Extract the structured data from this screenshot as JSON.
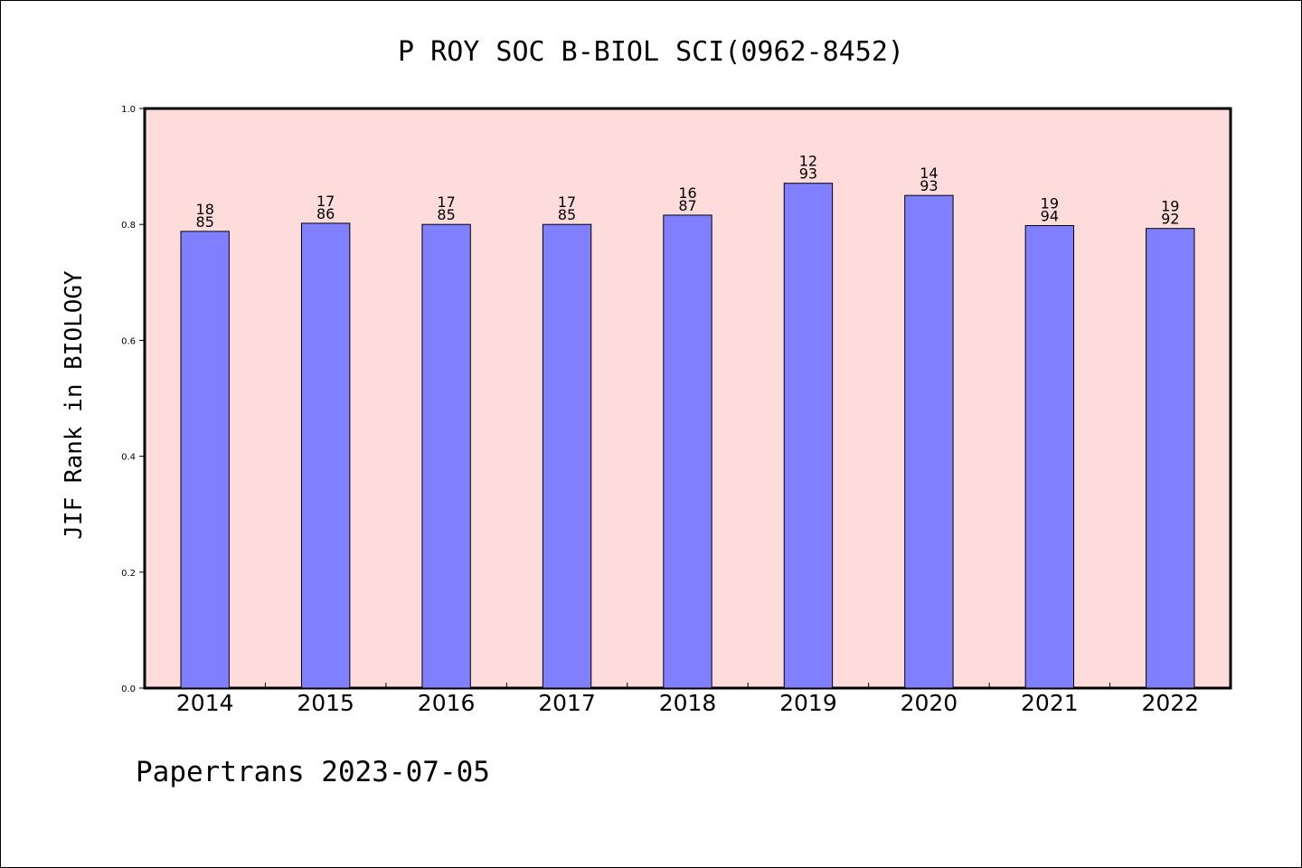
{
  "chart_data": {
    "type": "bar",
    "title": "P ROY SOC B-BIOL SCI(0962-8452)",
    "xlabel": "",
    "ylabel": "JIF Rank in BIOLOGY",
    "ylim": [
      0.0,
      1.0
    ],
    "yticks": [
      0.0,
      0.2,
      0.4,
      0.6,
      0.8,
      1.0
    ],
    "ytick_labels": [
      "0.0",
      "0.2",
      "0.4",
      "0.6",
      "0.8",
      "1.0"
    ],
    "categories": [
      "2014",
      "2015",
      "2016",
      "2017",
      "2018",
      "2019",
      "2020",
      "2021",
      "2022"
    ],
    "values": [
      0.788,
      0.802,
      0.8,
      0.8,
      0.816,
      0.871,
      0.85,
      0.798,
      0.793
    ],
    "rank_labels": [
      {
        "rank": "18",
        "total": "85"
      },
      {
        "rank": "17",
        "total": "86"
      },
      {
        "rank": "17",
        "total": "85"
      },
      {
        "rank": "17",
        "total": "85"
      },
      {
        "rank": "16",
        "total": "87"
      },
      {
        "rank": "12",
        "total": "93"
      },
      {
        "rank": "14",
        "total": "93"
      },
      {
        "rank": "19",
        "total": "94"
      },
      {
        "rank": "19",
        "total": "92"
      }
    ],
    "grid": false,
    "colors": {
      "bar": "#8080ff",
      "plot_background": "#ffdcdc",
      "axes": "#000000"
    }
  },
  "footer": {
    "text": "Papertrans 2023-07-05"
  }
}
